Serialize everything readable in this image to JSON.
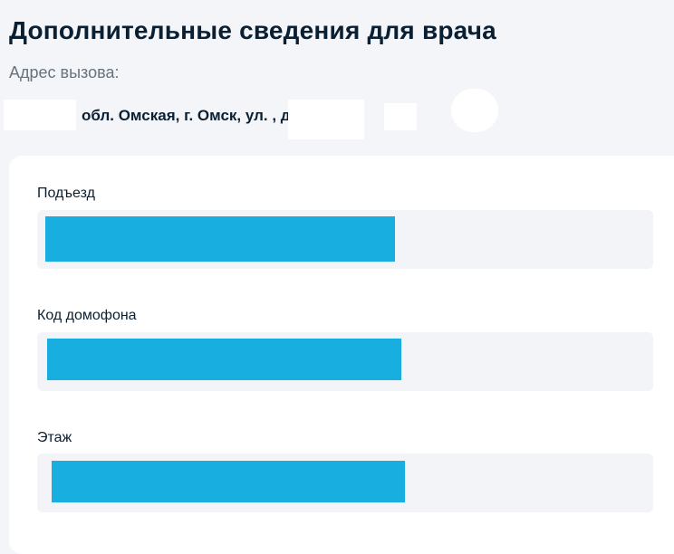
{
  "header": {
    "title": "Дополнительные сведения для врача"
  },
  "address": {
    "label": "Адрес вызова:",
    "value": "обл. Омская, г. Омск, ул.           , д.     , кв."
  },
  "form": {
    "fields": [
      {
        "label": "Подъезд",
        "value": ""
      },
      {
        "label": "Код домофона",
        "value": ""
      },
      {
        "label": "Этаж",
        "value": ""
      }
    ]
  },
  "colors": {
    "accent": "#18aee0",
    "background": "#f4f5f8",
    "input_bg": "#f3f4f7",
    "text": "#0b1f33",
    "muted": "#66727f"
  }
}
